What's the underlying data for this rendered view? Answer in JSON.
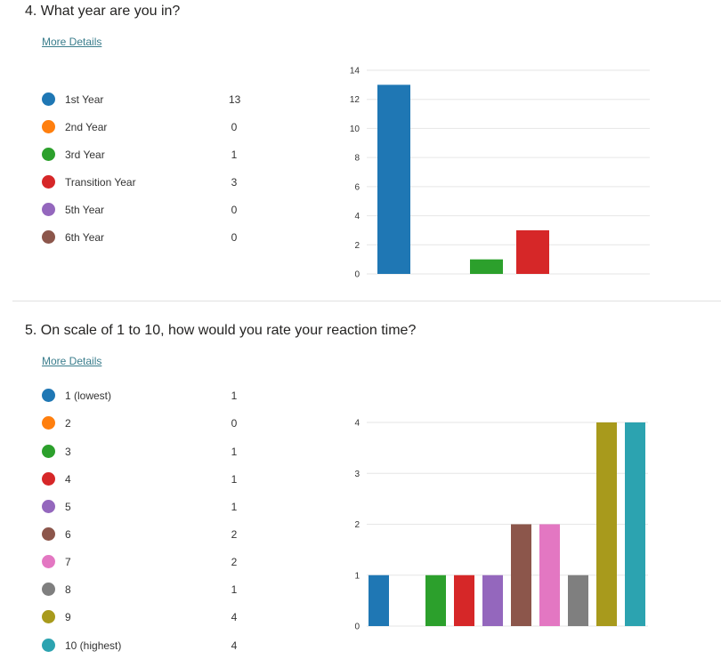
{
  "questions": [
    {
      "title": "4. What year are you in?",
      "more_details": "More Details",
      "options": [
        {
          "label": "1st Year",
          "count": "13",
          "color": "#1f77b4"
        },
        {
          "label": "2nd Year",
          "count": "0",
          "color": "#ff7f0e"
        },
        {
          "label": "3rd Year",
          "count": "1",
          "color": "#2ca02c"
        },
        {
          "label": "Transition Year",
          "count": "3",
          "color": "#d62728"
        },
        {
          "label": "5th Year",
          "count": "0",
          "color": "#9467bd"
        },
        {
          "label": "6th Year",
          "count": "0",
          "color": "#8c564b"
        }
      ]
    },
    {
      "title": "5. On scale of 1 to 10, how would you rate your reaction time?",
      "more_details": "More Details",
      "options": [
        {
          "label": "1 (lowest)",
          "count": "1",
          "color": "#1f77b4"
        },
        {
          "label": "2",
          "count": "0",
          "color": "#ff7f0e"
        },
        {
          "label": "3",
          "count": "1",
          "color": "#2ca02c"
        },
        {
          "label": "4",
          "count": "1",
          "color": "#d62728"
        },
        {
          "label": "5",
          "count": "1",
          "color": "#9467bd"
        },
        {
          "label": "6",
          "count": "2",
          "color": "#8c564b"
        },
        {
          "label": "7",
          "count": "2",
          "color": "#e377c2"
        },
        {
          "label": "8",
          "count": "1",
          "color": "#7f7f7f"
        },
        {
          "label": "9",
          "count": "4",
          "color": "#a89a1c"
        },
        {
          "label": "10 (highest)",
          "count": "4",
          "color": "#2ca3b0"
        }
      ]
    }
  ],
  "chart_data": [
    {
      "type": "bar",
      "categories": [
        "1st Year",
        "2nd Year",
        "3rd Year",
        "Transition Year",
        "5th Year",
        "6th Year"
      ],
      "values": [
        13,
        0,
        1,
        3,
        0,
        0
      ],
      "colors": [
        "#1f77b4",
        "#ff7f0e",
        "#2ca02c",
        "#d62728",
        "#9467bd",
        "#8c564b"
      ],
      "ylim": [
        0,
        14
      ],
      "yticks": [
        "0",
        "2",
        "4",
        "6",
        "8",
        "10",
        "12",
        "14"
      ],
      "grid": true
    },
    {
      "type": "bar",
      "categories": [
        "1 (lowest)",
        "2",
        "3",
        "4",
        "5",
        "6",
        "7",
        "8",
        "9",
        "10 (highest)"
      ],
      "values": [
        1,
        0,
        1,
        1,
        1,
        2,
        2,
        1,
        4,
        4
      ],
      "colors": [
        "#1f77b4",
        "#ff7f0e",
        "#2ca02c",
        "#d62728",
        "#9467bd",
        "#8c564b",
        "#e377c2",
        "#7f7f7f",
        "#a89a1c",
        "#2ca3b0"
      ],
      "ylim": [
        0,
        4
      ],
      "yticks": [
        "0",
        "1",
        "2",
        "3",
        "4"
      ],
      "grid": true
    }
  ]
}
